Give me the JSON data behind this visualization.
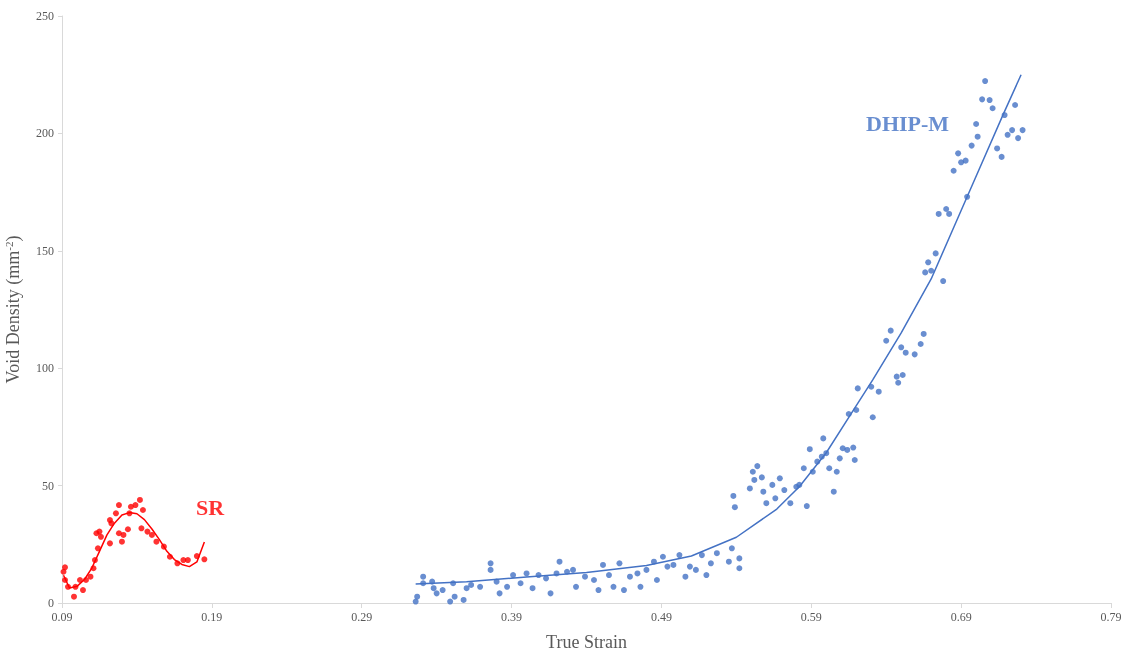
{
  "chart_data": {
    "type": "scatter",
    "xlabel": "True Strain",
    "ylabel": "Void Density (mm$^{-2}$)",
    "xlim": [
      0.09,
      0.79
    ],
    "xticks": [
      0.09,
      0.19,
      0.29,
      0.39,
      0.49,
      0.59,
      0.69,
      0.79
    ],
    "ylim": [
      0,
      250
    ],
    "yticks": [
      0,
      50,
      100,
      150,
      200,
      250
    ],
    "grid": false,
    "series": [
      {
        "name": "SR",
        "type": "scatter",
        "color": "#ff0000",
        "x": [
          0.092,
          0.091,
          0.092,
          0.094,
          0.098,
          0.099,
          0.102,
          0.104,
          0.106,
          0.109,
          0.111,
          0.112,
          0.114,
          0.113,
          0.115,
          0.116,
          0.122,
          0.123,
          0.122,
          0.128,
          0.126,
          0.128,
          0.13,
          0.131,
          0.134,
          0.135,
          0.136,
          0.139,
          0.142,
          0.144,
          0.143,
          0.147,
          0.15,
          0.153,
          0.158,
          0.162,
          0.167,
          0.171,
          0.174,
          0.18,
          0.185
        ],
        "values": [
          15.2,
          13.3,
          9.8,
          6.9,
          2.7,
          6.9,
          9.8,
          5.5,
          9.8,
          11.2,
          14.8,
          18.3,
          23.3,
          29.7,
          30.4,
          28.2,
          35.3,
          33.9,
          25.4,
          41.7,
          38.2,
          29.7,
          26.1,
          29.0,
          31.4,
          38.2,
          41.0,
          41.7,
          43.9,
          39.6,
          31.8,
          30.4,
          29.0,
          26.1,
          24.0,
          19.7,
          16.9,
          18.3,
          18.3,
          20.0,
          18.6
        ]
      },
      {
        "type": "line",
        "color": "#ff0000",
        "x": [
          0.091,
          0.095,
          0.1,
          0.105,
          0.11,
          0.115,
          0.12,
          0.125,
          0.13,
          0.135,
          0.14,
          0.145,
          0.15,
          0.155,
          0.16,
          0.165,
          0.17,
          0.175,
          0.18,
          0.185
        ],
        "values": [
          11.8,
          6.4,
          7.1,
          10,
          15,
          22,
          29,
          34,
          37.5,
          38.5,
          38,
          35.5,
          31.5,
          27,
          22,
          18.5,
          16.4,
          15.5,
          17.5,
          26
        ]
      },
      {
        "name": "DHIP-M",
        "type": "scatter",
        "color": "#4472c4",
        "x": [
          0.326,
          0.327,
          0.331,
          0.331,
          0.337,
          0.338,
          0.34,
          0.344,
          0.349,
          0.351,
          0.352,
          0.358,
          0.36,
          0.363,
          0.369,
          0.376,
          0.376,
          0.38,
          0.382,
          0.387,
          0.391,
          0.396,
          0.4,
          0.404,
          0.408,
          0.413,
          0.416,
          0.42,
          0.422,
          0.427,
          0.431,
          0.433,
          0.439,
          0.445,
          0.448,
          0.451,
          0.455,
          0.458,
          0.462,
          0.465,
          0.469,
          0.474,
          0.476,
          0.48,
          0.485,
          0.487,
          0.491,
          0.494,
          0.498,
          0.502,
          0.506,
          0.509,
          0.513,
          0.517,
          0.52,
          0.523,
          0.527,
          0.535,
          0.537,
          0.542,
          0.542,
          0.538,
          0.539,
          0.549,
          0.551,
          0.554,
          0.552,
          0.557,
          0.558,
          0.56,
          0.564,
          0.566,
          0.569,
          0.572,
          0.576,
          0.58,
          0.582,
          0.587,
          0.585,
          0.589,
          0.591,
          0.594,
          0.598,
          0.597,
          0.6,
          0.602,
          0.605,
          0.607,
          0.609,
          0.611,
          0.614,
          0.618,
          0.619,
          0.615,
          0.62,
          0.631,
          0.621,
          0.63,
          0.635,
          0.643,
          0.64,
          0.665,
          0.663,
          0.65,
          0.653,
          0.659,
          0.647,
          0.648,
          0.651,
          0.666,
          0.668,
          0.673,
          0.67,
          0.678,
          0.675,
          0.68,
          0.682,
          0.685,
          0.688,
          0.69,
          0.693,
          0.694,
          0.697,
          0.701,
          0.7,
          0.704,
          0.706,
          0.709,
          0.711,
          0.714,
          0.717,
          0.719,
          0.721,
          0.724,
          0.726,
          0.728,
          0.731
        ],
        "values": [
          0.6,
          2.7,
          11.2,
          8.4,
          9.1,
          6.3,
          4.1,
          5.5,
          0.6,
          8.4,
          2.7,
          1.3,
          6.3,
          7.7,
          6.9,
          16.9,
          14.1,
          9.1,
          4.1,
          6.9,
          11.9,
          8.4,
          12.6,
          6.3,
          11.9,
          10.5,
          4.1,
          12.6,
          17.6,
          13.3,
          14.1,
          6.9,
          11.2,
          9.8,
          5.5,
          16.2,
          11.9,
          6.9,
          16.9,
          5.5,
          11.2,
          12.6,
          6.9,
          14.1,
          17.6,
          9.8,
          19.7,
          15.5,
          16.2,
          20.4,
          11.2,
          15.5,
          14.1,
          20.4,
          11.9,
          16.9,
          21.2,
          17.6,
          23.3,
          14.8,
          19.0,
          45.6,
          40.8,
          48.8,
          55.9,
          58.3,
          52.4,
          53.5,
          47.4,
          42.5,
          50.3,
          44.6,
          53.1,
          48.1,
          42.5,
          49.5,
          50.3,
          41.3,
          57.4,
          65.5,
          55.9,
          60.2,
          70.1,
          62.3,
          63.8,
          57.4,
          47.4,
          55.9,
          61.6,
          65.9,
          65.2,
          66.2,
          60.9,
          80.5,
          82.2,
          79.1,
          91.4,
          92.1,
          90.0,
          116,
          111.7,
          114.6,
          110.3,
          108.9,
          106.6,
          105.9,
          96.4,
          93.8,
          97.1,
          140.8,
          145.1,
          148.9,
          141.5,
          137.1,
          165.7,
          167.8,
          165.7,
          184.1,
          191.5,
          187.7,
          188.4,
          173,
          194.8,
          198.6,
          204,
          214.5,
          222.3,
          214.2,
          210.7,
          193.6,
          190,
          207.8,
          199.4,
          201.4,
          212.1,
          198,
          201.4
        ]
      },
      {
        "type": "line",
        "color": "#4472c4",
        "x": [
          0.326,
          0.36,
          0.4,
          0.44,
          0.48,
          0.51,
          0.54,
          0.567,
          0.582,
          0.6,
          0.618,
          0.631,
          0.65,
          0.67,
          0.694,
          0.718,
          0.73
        ],
        "values": [
          8.1,
          9.1,
          11.1,
          13,
          16,
          20,
          28,
          40,
          49.5,
          64,
          82,
          95,
          115,
          138,
          173,
          208,
          225
        ]
      }
    ]
  }
}
